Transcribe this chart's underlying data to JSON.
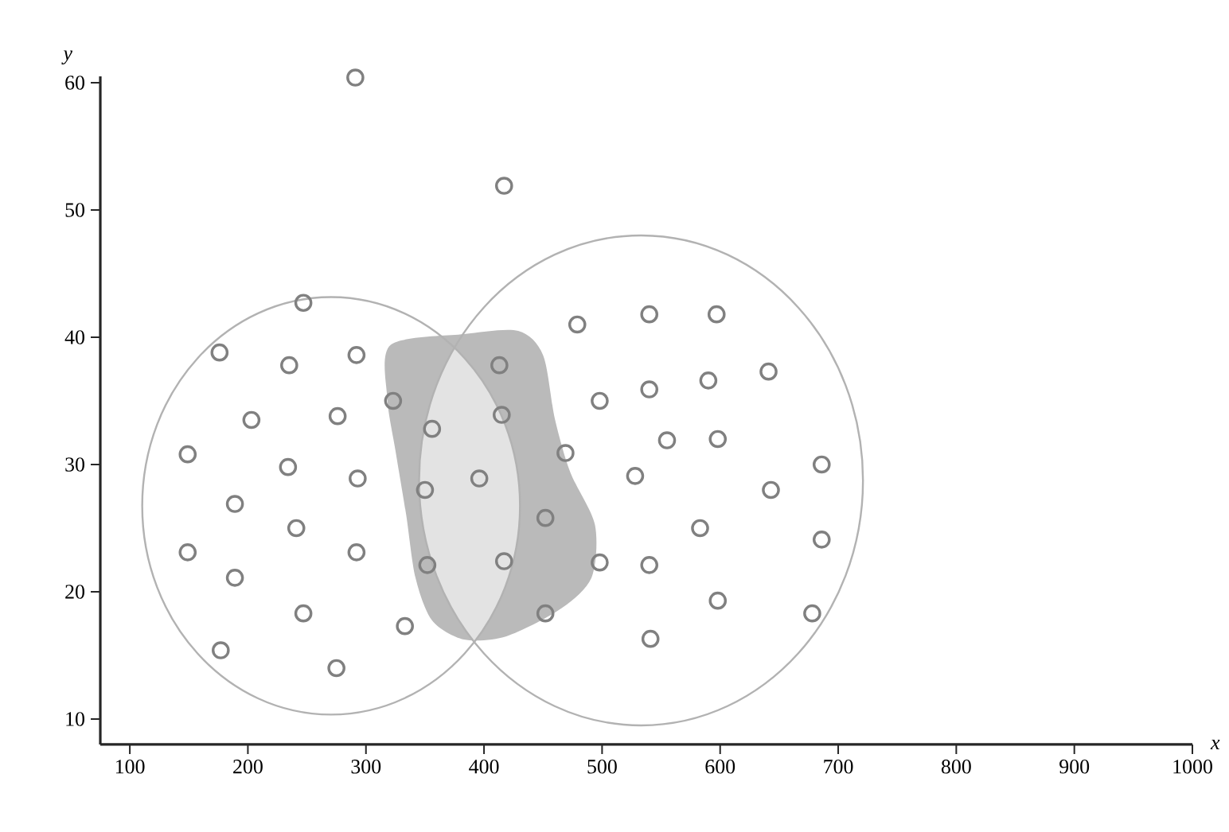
{
  "chart_data": {
    "type": "scatter",
    "xlabel": "x",
    "ylabel": "y",
    "x": [
      291,
      417,
      247,
      176,
      235,
      292,
      323,
      203,
      276,
      356,
      149,
      234,
      293,
      350,
      396,
      189,
      241,
      149,
      292,
      352,
      189,
      247,
      333,
      177,
      275,
      413,
      415,
      469,
      452,
      417,
      452,
      479,
      540,
      597,
      498,
      540,
      590,
      641,
      555,
      598,
      528,
      643,
      686,
      583,
      498,
      540,
      686,
      598,
      541,
      678
    ],
    "values": [
      60.4,
      51.9,
      42.7,
      38.8,
      37.8,
      38.6,
      35,
      33.5,
      33.8,
      32.8,
      30.8,
      29.8,
      28.9,
      28,
      28.9,
      26.9,
      25,
      23.1,
      23.1,
      22.1,
      21.1,
      18.3,
      17.3,
      15.4,
      14,
      37.8,
      33.9,
      30.9,
      25.8,
      22.4,
      18.3,
      41,
      41.8,
      41.8,
      35,
      35.9,
      36.6,
      37.3,
      31.9,
      32,
      29.1,
      28,
      30,
      25,
      22.3,
      22.1,
      24.1,
      19.3,
      16.3,
      18.3
    ],
    "color": "#808080",
    "marker": "circle",
    "xlim": [
      75,
      1000
    ],
    "ylim": [
      8,
      60.5
    ],
    "xticks": [
      100,
      200,
      300,
      400,
      500,
      600,
      700,
      800,
      900,
      1000
    ],
    "yticks": [
      10,
      20,
      30,
      40,
      50,
      60
    ]
  }
}
